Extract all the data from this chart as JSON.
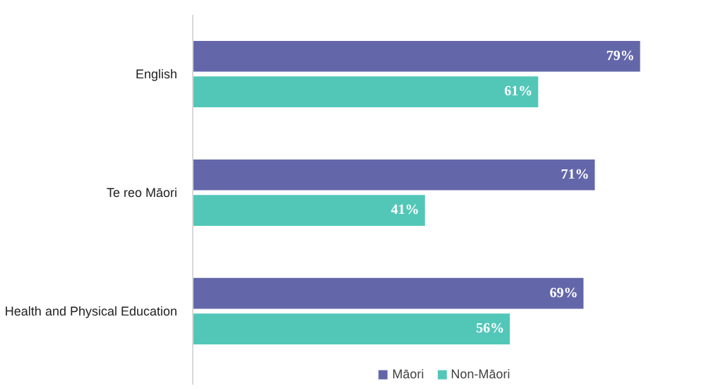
{
  "chart_data": {
    "type": "bar",
    "orientation": "horizontal",
    "categories": [
      "English",
      "Te reo Māori",
      "Health and Physical Education"
    ],
    "series": [
      {
        "name": "Māori",
        "color": "#6367a9",
        "values": [
          79,
          71,
          69
        ],
        "value_labels": [
          "79%",
          "71%",
          "69%"
        ]
      },
      {
        "name": "Non-Māori",
        "color": "#52c7b8",
        "values": [
          61,
          41,
          56
        ],
        "value_labels": [
          "61%",
          "41%",
          "56%"
        ]
      }
    ],
    "tick_labels": "y",
    "legend": "bottom"
  }
}
